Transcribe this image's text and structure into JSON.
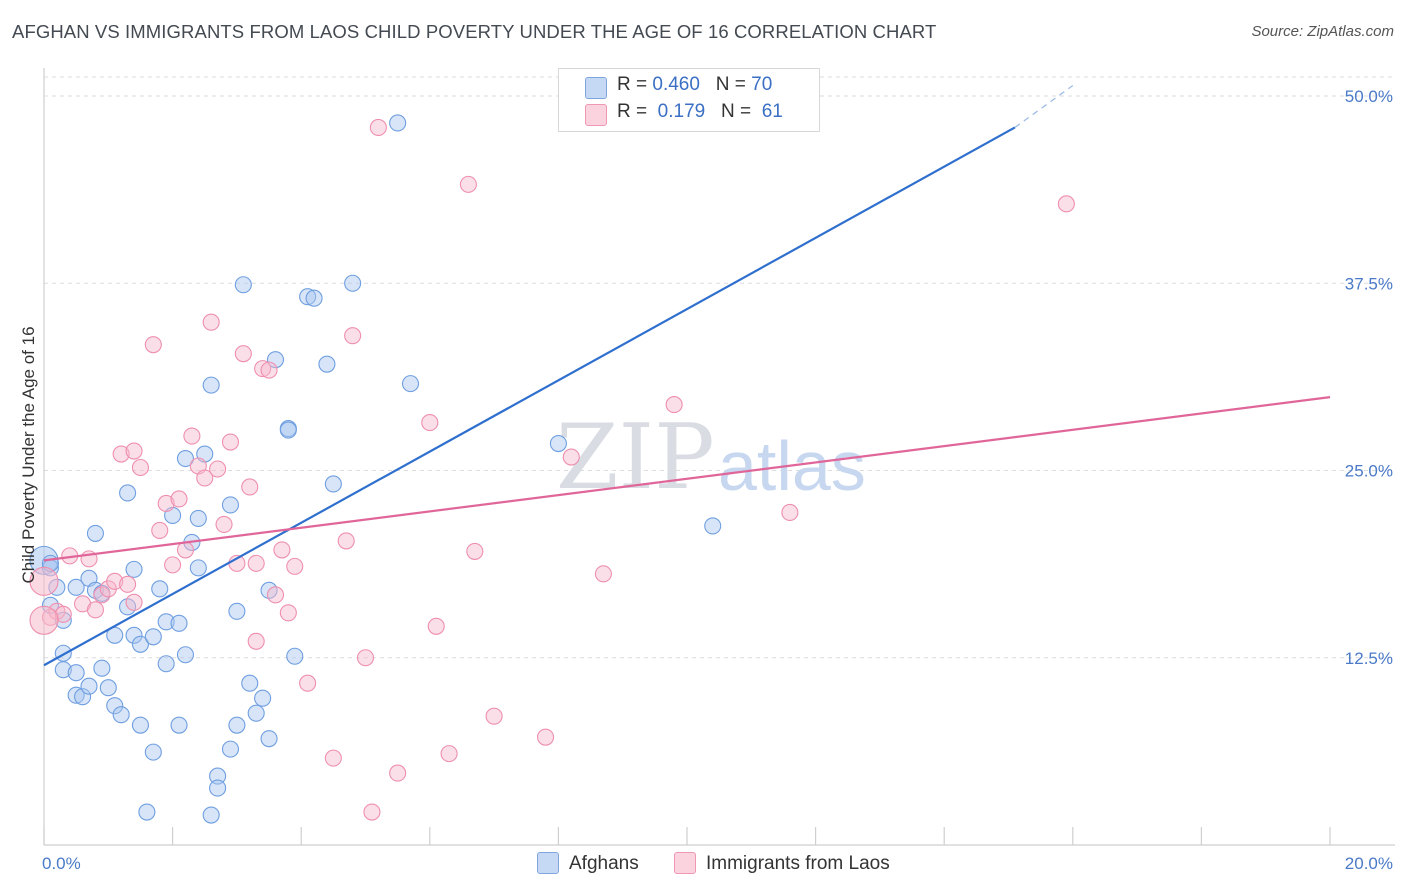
{
  "header": {
    "title": "AFGHAN VS IMMIGRANTS FROM LAOS CHILD POVERTY UNDER THE AGE OF 16 CORRELATION CHART",
    "source": "Source: ZipAtlas.com"
  },
  "watermark": {
    "zip": "ZIP",
    "atlas": "atlas"
  },
  "legend_top": {
    "rows": [
      {
        "r_label": "R = ",
        "r_value": "0.460",
        "n_label": "N = ",
        "n_value": "70",
        "color": "#a9c6f0"
      },
      {
        "r_label": "R = ",
        "r_value": " 0.179",
        "n_label": "N = ",
        "n_value": " 61",
        "color": "#f7b9cc"
      }
    ]
  },
  "legend_bottom": {
    "items": [
      {
        "label": "Afghans",
        "color": "#a9c6f0"
      },
      {
        "label": "Immigrants from Laos",
        "color": "#f7b9cc"
      }
    ]
  },
  "chart_data": {
    "type": "scatter",
    "title": "AFGHAN VS IMMIGRANTS FROM LAOS CHILD POVERTY UNDER THE AGE OF 16 CORRELATION CHART",
    "xlabel": "",
    "ylabel": "Child Poverty Under the Age of 16",
    "xlim": [
      0,
      20
    ],
    "ylim": [
      0,
      50
    ],
    "x_tick_labels": [
      "0.0%",
      "20.0%"
    ],
    "y_ticks": [
      12.5,
      25.0,
      37.5,
      50.0
    ],
    "y_tick_labels": [
      "12.5%",
      "25.0%",
      "37.5%",
      "50.0%"
    ],
    "grid": true,
    "legend_position": "top-center",
    "series": [
      {
        "name": "Afghans",
        "color": "#6f9fe0",
        "fill": "#a9c6f0",
        "trend": {
          "x": [
            0,
            15.1
          ],
          "y": [
            12.0,
            47.9
          ],
          "extended_to": [
            16.0,
            50.7
          ]
        },
        "points": [
          [
            0.0,
            19.0
          ],
          [
            0.1,
            18.5
          ],
          [
            0.1,
            16.0
          ],
          [
            0.2,
            17.2
          ],
          [
            0.3,
            15.0
          ],
          [
            0.3,
            12.8
          ],
          [
            0.3,
            11.7
          ],
          [
            0.5,
            17.2
          ],
          [
            0.5,
            10.0
          ],
          [
            0.5,
            11.5
          ],
          [
            0.6,
            9.9
          ],
          [
            0.7,
            10.6
          ],
          [
            0.7,
            17.8
          ],
          [
            0.8,
            20.8
          ],
          [
            0.8,
            17.0
          ],
          [
            0.9,
            16.8
          ],
          [
            0.9,
            11.8
          ],
          [
            1.0,
            10.5
          ],
          [
            1.1,
            9.3
          ],
          [
            1.1,
            14.0
          ],
          [
            1.2,
            8.7
          ],
          [
            1.3,
            15.9
          ],
          [
            1.3,
            23.5
          ],
          [
            1.4,
            14.0
          ],
          [
            1.4,
            18.4
          ],
          [
            1.5,
            13.4
          ],
          [
            1.5,
            8.0
          ],
          [
            1.6,
            2.2
          ],
          [
            1.7,
            13.9
          ],
          [
            1.7,
            6.2
          ],
          [
            1.8,
            17.1
          ],
          [
            1.9,
            12.1
          ],
          [
            1.9,
            14.9
          ],
          [
            2.0,
            22.0
          ],
          [
            2.1,
            14.8
          ],
          [
            2.1,
            8.0
          ],
          [
            2.2,
            12.7
          ],
          [
            2.2,
            25.8
          ],
          [
            2.3,
            20.2
          ],
          [
            2.4,
            18.5
          ],
          [
            2.4,
            21.8
          ],
          [
            2.5,
            26.1
          ],
          [
            2.6,
            2.0
          ],
          [
            2.6,
            30.7
          ],
          [
            2.7,
            4.6
          ],
          [
            2.7,
            3.8
          ],
          [
            2.9,
            6.4
          ],
          [
            2.9,
            22.7
          ],
          [
            3.0,
            15.6
          ],
          [
            3.0,
            8.0
          ],
          [
            3.1,
            37.4
          ],
          [
            3.2,
            10.8
          ],
          [
            3.3,
            8.8
          ],
          [
            3.4,
            9.8
          ],
          [
            3.5,
            17.0
          ],
          [
            3.5,
            7.1
          ],
          [
            3.6,
            32.4
          ],
          [
            3.8,
            27.8
          ],
          [
            3.8,
            27.7
          ],
          [
            3.9,
            12.6
          ],
          [
            4.1,
            36.6
          ],
          [
            4.2,
            36.5
          ],
          [
            4.4,
            32.1
          ],
          [
            4.5,
            24.1
          ],
          [
            4.8,
            37.5
          ],
          [
            5.5,
            48.2
          ],
          [
            5.7,
            30.8
          ],
          [
            8.0,
            26.8
          ],
          [
            10.4,
            21.3
          ],
          [
            0.1,
            18.8
          ]
        ]
      },
      {
        "name": "Immigrants from Laos",
        "color": "#ee8fae",
        "fill": "#f7b9cc",
        "trend": {
          "x": [
            0,
            20
          ],
          "y": [
            19.0,
            29.9
          ]
        },
        "points": [
          [
            0.0,
            17.6
          ],
          [
            0.1,
            15.2
          ],
          [
            0.2,
            15.6
          ],
          [
            0.3,
            15.4
          ],
          [
            0.4,
            19.3
          ],
          [
            0.6,
            16.1
          ],
          [
            0.7,
            19.1
          ],
          [
            0.8,
            15.7
          ],
          [
            0.9,
            16.7
          ],
          [
            1.0,
            17.1
          ],
          [
            1.1,
            17.6
          ],
          [
            1.2,
            26.1
          ],
          [
            1.3,
            17.4
          ],
          [
            1.4,
            16.2
          ],
          [
            1.4,
            26.3
          ],
          [
            1.5,
            25.2
          ],
          [
            1.7,
            33.4
          ],
          [
            1.8,
            21.0
          ],
          [
            1.9,
            22.8
          ],
          [
            2.0,
            18.7
          ],
          [
            2.1,
            23.1
          ],
          [
            2.2,
            19.7
          ],
          [
            2.3,
            27.3
          ],
          [
            2.4,
            25.3
          ],
          [
            2.5,
            24.5
          ],
          [
            2.6,
            34.9
          ],
          [
            2.7,
            25.1
          ],
          [
            2.8,
            21.4
          ],
          [
            2.9,
            26.9
          ],
          [
            3.0,
            18.8
          ],
          [
            3.1,
            32.8
          ],
          [
            3.2,
            23.9
          ],
          [
            3.3,
            18.8
          ],
          [
            3.3,
            13.6
          ],
          [
            3.4,
            31.8
          ],
          [
            3.5,
            31.7
          ],
          [
            3.6,
            16.7
          ],
          [
            3.7,
            19.7
          ],
          [
            3.8,
            15.5
          ],
          [
            3.9,
            18.6
          ],
          [
            4.1,
            10.8
          ],
          [
            4.5,
            5.8
          ],
          [
            4.7,
            20.3
          ],
          [
            4.8,
            34.0
          ],
          [
            5.0,
            12.5
          ],
          [
            5.1,
            2.2
          ],
          [
            5.2,
            47.9
          ],
          [
            5.5,
            4.8
          ],
          [
            6.0,
            28.2
          ],
          [
            6.1,
            14.6
          ],
          [
            6.3,
            6.1
          ],
          [
            6.6,
            44.1
          ],
          [
            6.7,
            19.6
          ],
          [
            7.0,
            8.6
          ],
          [
            7.8,
            7.2
          ],
          [
            8.2,
            25.9
          ],
          [
            8.7,
            18.1
          ],
          [
            9.8,
            29.4
          ],
          [
            11.6,
            22.2
          ],
          [
            15.9,
            42.8
          ],
          [
            0.0,
            15.0
          ]
        ]
      }
    ]
  }
}
